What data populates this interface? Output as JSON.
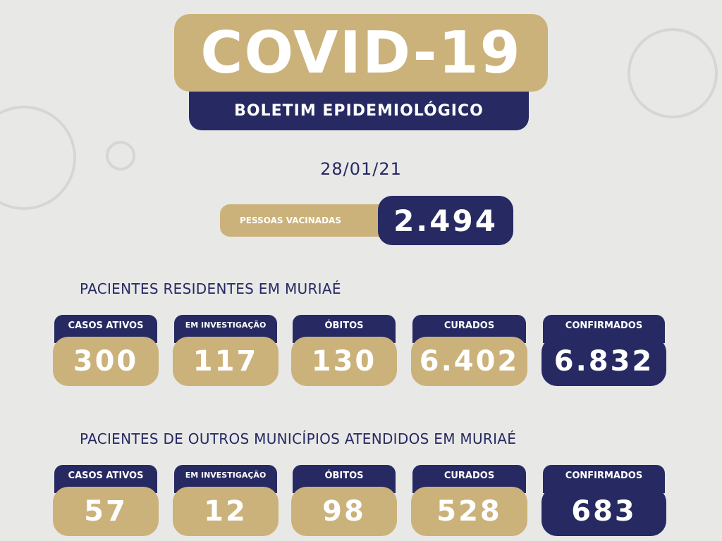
{
  "header": {
    "title": "COVID-19",
    "subtitle": "BOLETIM EPIDEMIOLÓGICO"
  },
  "date": "28/01/21",
  "vaccinated": {
    "label": "PESSOAS VACINADAS",
    "value": "2.494"
  },
  "sections": [
    {
      "title": "PACIENTES RESIDENTES EM MURIAÉ",
      "cards": [
        {
          "label": "CASOS ATIVOS",
          "value": "300"
        },
        {
          "label": "EM INVESTIGAÇÃO",
          "value": "117"
        },
        {
          "label": "ÓBITOS",
          "value": "130"
        },
        {
          "label": "CURADOS",
          "value": "6.402"
        },
        {
          "label": "CONFIRMADOS",
          "value": "6.832"
        }
      ]
    },
    {
      "title": "PACIENTES DE OUTROS MUNICÍPIOS ATENDIDOS EM MURIAÉ",
      "cards": [
        {
          "label": "CASOS ATIVOS",
          "value": "57"
        },
        {
          "label": "EM INVESTIGAÇÃO",
          "value": "12"
        },
        {
          "label": "ÓBITOS",
          "value": "98"
        },
        {
          "label": "CURADOS",
          "value": "528"
        },
        {
          "label": "CONFIRMADOS",
          "value": "683"
        }
      ]
    }
  ]
}
